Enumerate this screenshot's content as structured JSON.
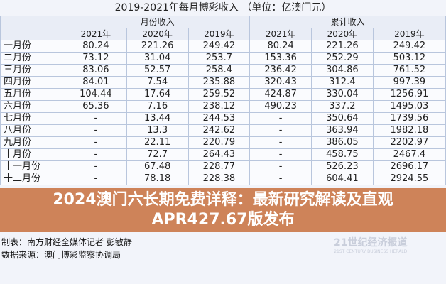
{
  "title": "2019-2021年每月博彩收入 （单位：亿澳门元）",
  "group_headers": [
    "月份收入",
    "累计收入"
  ],
  "years": [
    "2021年",
    "2020年",
    "2019年",
    "2021年",
    "2020年",
    "2019年"
  ],
  "rows": [
    {
      "month": "一月份",
      "v": [
        "80.24",
        "221.26",
        "249.42",
        "80.24",
        "221.26",
        "249.42"
      ]
    },
    {
      "month": "二月份",
      "v": [
        "73.12",
        "31.04",
        "253.7",
        "153.36",
        "252.29",
        "503.12"
      ]
    },
    {
      "month": "三月份",
      "v": [
        "83.06",
        "52.57",
        "258.4",
        "236.42",
        "304.86",
        "761.52"
      ]
    },
    {
      "month": "四月份",
      "v": [
        "84.01",
        "7.54",
        "235.88",
        "320.43",
        "312.4",
        "997.39"
      ]
    },
    {
      "month": "五月份",
      "v": [
        "104.44",
        "17.64",
        "259.52",
        "424.87",
        "330.04",
        "1256.91"
      ]
    },
    {
      "month": "六月份",
      "v": [
        "65.36",
        "7.16",
        "238.12",
        "490.23",
        "337.2",
        "1495.03"
      ]
    },
    {
      "month": "七月份",
      "v": [
        "-",
        "13.44",
        "244.53",
        "-",
        "350.64",
        "1739.56"
      ]
    },
    {
      "month": "八月份",
      "v": [
        "-",
        "13.3",
        "242.62",
        "-",
        "363.94",
        "1982.18"
      ]
    },
    {
      "month": "九月份",
      "v": [
        "-",
        "22.11",
        "220.79",
        "-",
        "386.05",
        "2202.97"
      ]
    },
    {
      "month": "十月份",
      "v": [
        "-",
        "72.7",
        "264.43",
        "-",
        "458.75",
        "2467.4"
      ]
    },
    {
      "month": "十一月份",
      "v": [
        "-",
        "67.48",
        "228.77",
        "-",
        "526.23",
        "2696.17"
      ]
    },
    {
      "month": "十二月份",
      "v": [
        "-",
        "78.18",
        "228.38",
        "-",
        "604.41",
        "2924.55"
      ]
    }
  ],
  "banner": "2024澳门六长期免费详释：最新研究解读及直观APR427.67版发布",
  "footer": {
    "maker": "制表：南方财经全媒体记者 彭敏静",
    "source": "数据来源：澳门博彩监察协调局"
  },
  "logo": {
    "cn": "21世纪经济报道",
    "en": "21ST CENTURY BUSINESS HERALD"
  }
}
